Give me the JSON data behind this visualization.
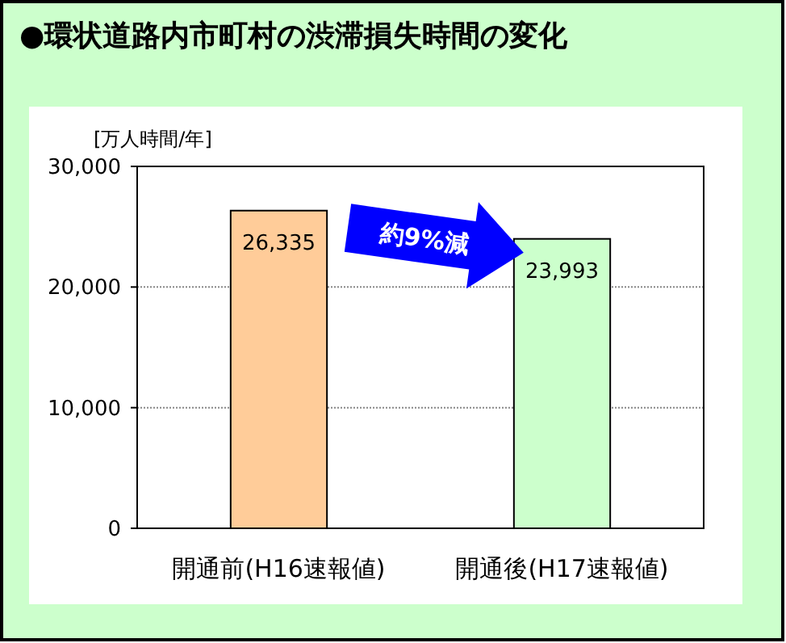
{
  "chart_data": {
    "type": "bar",
    "title": "●環状道路内市町村の渋滞損失時間の変化",
    "ylabel": "[万人時間/年]",
    "categories": [
      "開通前(H16速報値)",
      "開通後(H17速報値)"
    ],
    "values": [
      26335,
      23993
    ],
    "colors": [
      "#ffcc99",
      "#ccffcc"
    ],
    "value_labels": [
      "26,335",
      "23,993"
    ],
    "ylim": [
      0,
      30000
    ],
    "yticks": [
      0,
      {
        "value": 10000,
        "label": "10,000"
      },
      {
        "value": 20000,
        "label": "20,000"
      },
      {
        "value": 30000,
        "label": "30,000"
      }
    ],
    "grid": "y",
    "annotations": [
      "約9%減"
    ]
  }
}
